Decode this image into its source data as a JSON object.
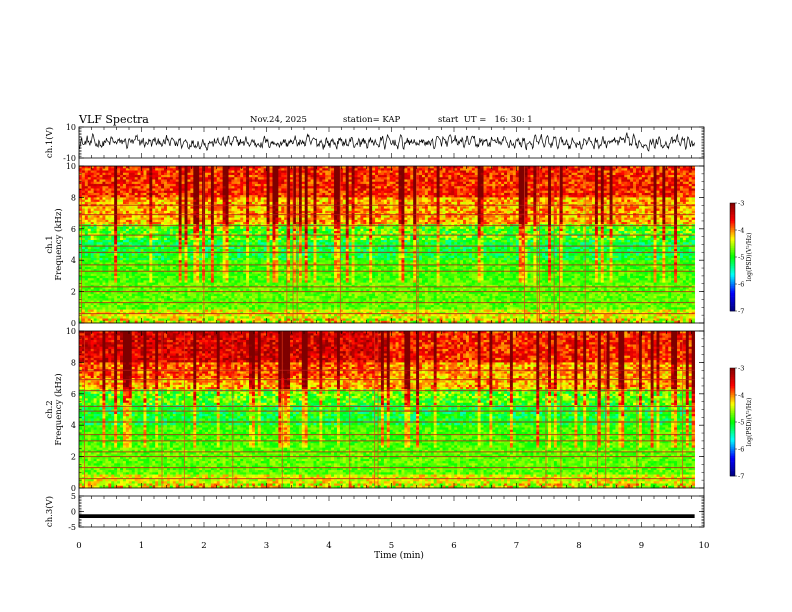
{
  "header": {
    "title": "VLF Spectra",
    "date": "Nov.24, 2025",
    "station": "station= KAP",
    "start_ut": "start  UT =   16: 30: 1"
  },
  "chart_data": [
    {
      "type": "line",
      "name": "ch1-waveform",
      "ylabel": "ch.1(V)",
      "ylim": [
        -10,
        10
      ],
      "yticks": [
        "10",
        "-10"
      ],
      "xlim": [
        0,
        10
      ],
      "mean": 0,
      "amplitude": 4
    },
    {
      "type": "heatmap",
      "name": "ch1-spectrogram",
      "ylabel_line1": "ch.1",
      "ylabel_line2": "Frequency (kHz)",
      "ylim": [
        0,
        10
      ],
      "yticks": [
        "0",
        "2",
        "4",
        "6",
        "8",
        "10"
      ],
      "xlim": [
        0,
        10
      ],
      "data_end_min": 9.85,
      "lines_khz": [
        0.6,
        1.3,
        2.0,
        2.3,
        3.3,
        3.7,
        4.5,
        4.9,
        5.6,
        6.2,
        6.9,
        7.5
      ],
      "colorbar": {
        "label": "log(PSD)(V²/Hz)",
        "range": [
          -7,
          -3
        ],
        "ticks": [
          "-3",
          "-4",
          "-5",
          "-6",
          "-7"
        ]
      }
    },
    {
      "type": "heatmap",
      "name": "ch2-spectrogram",
      "ylabel_line1": "ch.2",
      "ylabel_line2": "Frequency (kHz)",
      "ylim": [
        0,
        10
      ],
      "yticks": [
        "0",
        "2",
        "4",
        "6",
        "8",
        "10"
      ],
      "xlim": [
        0,
        10
      ],
      "data_end_min": 9.85,
      "lines_khz": [
        0.6,
        1.3,
        2.0,
        2.3,
        3.0,
        3.4,
        4.2,
        4.9,
        5.2,
        6.2,
        6.9,
        7.5
      ],
      "colorbar": {
        "label": "log(PSD)(V²/Hz)",
        "range": [
          -7,
          -3
        ],
        "ticks": [
          "-3",
          "-4",
          "-5",
          "-6",
          "-7"
        ]
      }
    },
    {
      "type": "line",
      "name": "ch3-waveform",
      "ylabel": "ch.3(V)",
      "ylim": [
        -5,
        5
      ],
      "yticks": [
        "5",
        "0",
        "-5"
      ],
      "xlim": [
        0,
        10
      ],
      "mean": -1.5,
      "amplitude": 0.6
    }
  ],
  "x_axis": {
    "label": "Time (min)",
    "ticks": [
      "0",
      "1",
      "2",
      "3",
      "4",
      "5",
      "6",
      "7",
      "8",
      "9",
      "10"
    ]
  },
  "colors": {
    "jet_stops": [
      "#00007f",
      "#0000ff",
      "#00ffff",
      "#00ff00",
      "#ffff00",
      "#ff0000",
      "#7f0000"
    ]
  }
}
